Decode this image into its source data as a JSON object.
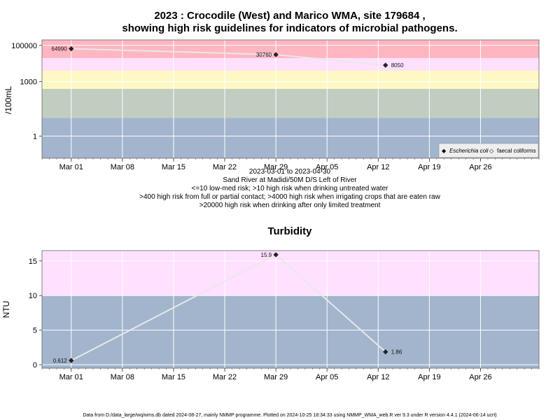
{
  "chart_data": [
    {
      "type": "line",
      "title_line1": "2023 : Crocodile (West) and Marico WMA, site 179684 ,",
      "title_line2": "showing high risk guidelines for indicators of microbial pathogens.",
      "ylabel": "/100mL",
      "yscale": "log",
      "ylim": [
        0.06,
        200000
      ],
      "y_ticks": [
        {
          "value": 1,
          "label": "1"
        },
        {
          "value": 1000,
          "label": "1000"
        },
        {
          "value": 100000,
          "label": "100000"
        }
      ],
      "xlim": [
        "2023-02-25",
        "2023-05-04"
      ],
      "x_ticks": [
        {
          "date": "2023-03-01",
          "label": "Mar 01"
        },
        {
          "date": "2023-03-08",
          "label": "Mar 08"
        },
        {
          "date": "2023-03-15",
          "label": "Mar 15"
        },
        {
          "date": "2023-03-22",
          "label": "Mar 22"
        },
        {
          "date": "2023-03-29",
          "label": "Mar 29"
        },
        {
          "date": "2023-04-05",
          "label": "Apr 05"
        },
        {
          "date": "2023-04-12",
          "label": "Apr 12"
        },
        {
          "date": "2023-04-19",
          "label": "Apr 19"
        },
        {
          "date": "2023-04-26",
          "label": "Apr 26"
        }
      ],
      "bands": [
        {
          "from": 0.06,
          "to": 10,
          "color": "#a2b5cd"
        },
        {
          "from": 10,
          "to": 400,
          "color": "#c1cdc1"
        },
        {
          "from": 400,
          "to": 4000,
          "color": "#fff8c4"
        },
        {
          "from": 4000,
          "to": 20000,
          "color": "#ffe0ff"
        },
        {
          "from": 20000,
          "to": 200000,
          "color": "#ffb6c1"
        }
      ],
      "series": [
        {
          "name": "Escherichia coli",
          "color": "#e8e8e8",
          "points": [
            {
              "date": "2023-03-01",
              "y": 64990,
              "label": "64990"
            },
            {
              "date": "2023-03-29",
              "y": 30760,
              "label": "30760"
            },
            {
              "date": "2023-04-13",
              "y": 8050,
              "label": "8050"
            }
          ]
        }
      ],
      "legend": {
        "placement": "bottom-right",
        "entries": [
          {
            "symbol": "◆",
            "label": "Escherichia coli"
          },
          {
            "symbol": "◇",
            "label": "faecal coliforms"
          }
        ]
      },
      "under_axis_text": [
        "2023-03-01 to 2023-04-30",
        "Sand River at Madidi/50M D/S Left of River",
        "<=10 low-med risk; >10 high risk when drinking untreated water",
        ">400 high risk from full or partial contact; >4000 high risk when irrigating crops that are eaten raw",
        ">20000 high risk when drinking after only limited treatment"
      ]
    },
    {
      "type": "line",
      "title": "Turbidity",
      "ylabel": "NTU",
      "yscale": "linear",
      "ylim": [
        -0.5,
        16.5
      ],
      "y_ticks": [
        {
          "value": 0,
          "label": "0"
        },
        {
          "value": 5,
          "label": "5"
        },
        {
          "value": 10,
          "label": "10"
        },
        {
          "value": 15,
          "label": "15"
        }
      ],
      "xlim": [
        "2023-02-25",
        "2023-05-04"
      ],
      "x_ticks": [
        {
          "date": "2023-03-01",
          "label": "Mar 01"
        },
        {
          "date": "2023-03-08",
          "label": "Mar 08"
        },
        {
          "date": "2023-03-15",
          "label": "Mar 15"
        },
        {
          "date": "2023-03-22",
          "label": "Mar 22"
        },
        {
          "date": "2023-03-29",
          "label": "Mar 29"
        },
        {
          "date": "2023-04-05",
          "label": "Apr 05"
        },
        {
          "date": "2023-04-12",
          "label": "Apr 12"
        },
        {
          "date": "2023-04-19",
          "label": "Apr 19"
        },
        {
          "date": "2023-04-26",
          "label": "Apr 26"
        }
      ],
      "bands": [
        {
          "from": -0.5,
          "to": 10,
          "color": "#a2b5cd"
        },
        {
          "from": 10,
          "to": 16.5,
          "color": "#ffe0ff"
        }
      ],
      "series": [
        {
          "name": "Turbidity",
          "color": "#e8e8e8",
          "points": [
            {
              "date": "2023-03-01",
              "y": 0.612,
              "label": "0.612"
            },
            {
              "date": "2023-03-29",
              "y": 15.9,
              "label": "15.9"
            },
            {
              "date": "2023-04-13",
              "y": 1.86,
              "label": "1.86"
            }
          ]
        }
      ]
    }
  ],
  "footer": "Data from D:/data_large/wq/wms.db dated 2024-08-27, mainly NMMP programme. Plotted on 2024-10-25 18:34:33 using NMMP_WMA_web.R ver 9.3 under R version 4.4.1 (2024-06-14 ucrt)"
}
